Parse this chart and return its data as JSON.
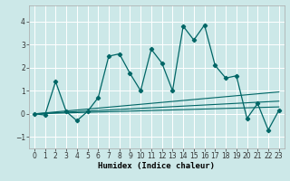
{
  "title": "",
  "xlabel": "Humidex (Indice chaleur)",
  "bg_color": "#cce8e8",
  "grid_color": "#ffffff",
  "line_color": "#006666",
  "xlim": [
    -0.5,
    23.5
  ],
  "ylim": [
    -1.5,
    4.7
  ],
  "x_ticks": [
    0,
    1,
    2,
    3,
    4,
    5,
    6,
    7,
    8,
    9,
    10,
    11,
    12,
    13,
    14,
    15,
    16,
    17,
    18,
    19,
    20,
    21,
    22,
    23
  ],
  "y_ticks": [
    -1,
    0,
    1,
    2,
    3,
    4
  ],
  "main_series_x": [
    0,
    1,
    2,
    3,
    4,
    5,
    6,
    7,
    8,
    9,
    10,
    11,
    12,
    13,
    14,
    15,
    16,
    17,
    18,
    19,
    20,
    21,
    22,
    23
  ],
  "main_series_y": [
    0.0,
    -0.05,
    1.4,
    0.1,
    -0.3,
    0.1,
    0.7,
    2.5,
    2.6,
    1.75,
    1.0,
    2.8,
    2.2,
    1.0,
    3.8,
    3.2,
    3.85,
    2.1,
    1.55,
    1.65,
    -0.2,
    0.45,
    -0.7,
    0.15
  ],
  "line1_x": [
    0,
    23
  ],
  "line1_y": [
    0.0,
    0.3
  ],
  "line2_x": [
    0,
    23
  ],
  "line2_y": [
    0.0,
    0.55
  ],
  "line3_x": [
    0,
    23
  ],
  "line3_y": [
    0.0,
    0.95
  ]
}
